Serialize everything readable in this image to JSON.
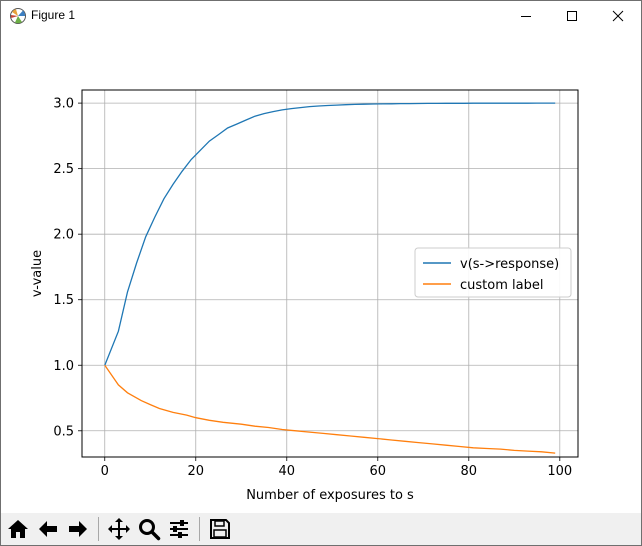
{
  "window": {
    "title": "Figure 1"
  },
  "toolbar": {
    "buttons": [
      {
        "name": "home-icon",
        "tooltip": "Reset original view"
      },
      {
        "name": "back-arrow-icon",
        "tooltip": "Back to previous view"
      },
      {
        "name": "forward-arrow-icon",
        "tooltip": "Forward to next view"
      },
      {
        "name": "pan-icon",
        "tooltip": "Pan axes"
      },
      {
        "name": "zoom-icon",
        "tooltip": "Zoom to rectangle"
      },
      {
        "name": "configure-subplots-icon",
        "tooltip": "Configure subplots"
      },
      {
        "name": "save-icon",
        "tooltip": "Save the figure"
      }
    ]
  },
  "colors": {
    "series1": "#1f77b4",
    "series2": "#ff7f0e",
    "grid": "#b0b0b0",
    "axes": "#000000"
  },
  "chart_data": {
    "type": "line",
    "title": "",
    "xlabel": "Number of exposures to s",
    "ylabel": "v-value",
    "xlim": [
      -5,
      104
    ],
    "ylim": [
      0.3,
      3.1
    ],
    "xticks": [
      0,
      20,
      40,
      60,
      80,
      100
    ],
    "yticks": [
      0.5,
      1.0,
      1.5,
      2.0,
      2.5,
      3.0
    ],
    "xtick_labels": [
      "0",
      "20",
      "40",
      "60",
      "80",
      "100"
    ],
    "ytick_labels": [
      "0.5",
      "1.0",
      "1.5",
      "2.0",
      "2.5",
      "3.0"
    ],
    "grid": true,
    "legend_position": "center-right",
    "series": [
      {
        "name": "v(s->response)",
        "color": "#1f77b4",
        "x": [
          0,
          3,
          5,
          7,
          9,
          11,
          13,
          15,
          17,
          19,
          21,
          23,
          25,
          27,
          29,
          31,
          33,
          35,
          37,
          39,
          41,
          43,
          45,
          47,
          49,
          51,
          53,
          55,
          57,
          59,
          61,
          63,
          65,
          67,
          69,
          71,
          73,
          75,
          77,
          79,
          81,
          83,
          85,
          87,
          89,
          91,
          93,
          95,
          97,
          99
        ],
        "y": [
          1.0,
          1.26,
          1.56,
          1.78,
          1.98,
          2.13,
          2.27,
          2.38,
          2.48,
          2.57,
          2.64,
          2.71,
          2.76,
          2.81,
          2.84,
          2.87,
          2.9,
          2.92,
          2.935,
          2.948,
          2.958,
          2.966,
          2.973,
          2.978,
          2.982,
          2.985,
          2.988,
          2.99,
          2.992,
          2.993,
          2.994,
          2.995,
          2.996,
          2.9965,
          2.997,
          2.9975,
          2.998,
          2.9983,
          2.9986,
          2.9988,
          2.999,
          2.9991,
          2.9992,
          2.9993,
          2.9994,
          2.9995,
          2.9996,
          2.9997,
          2.9998,
          3.0
        ]
      },
      {
        "name": "custom label",
        "color": "#ff7f0e",
        "x": [
          0,
          3,
          5,
          8,
          10,
          12,
          15,
          18,
          20,
          23,
          26,
          30,
          33,
          36,
          39,
          42,
          45,
          48,
          51,
          54,
          57,
          60,
          63,
          66,
          69,
          72,
          75,
          78,
          81,
          84,
          87,
          90,
          93,
          96,
          99
        ],
        "y": [
          1.0,
          0.85,
          0.79,
          0.73,
          0.7,
          0.67,
          0.64,
          0.62,
          0.6,
          0.58,
          0.565,
          0.55,
          0.535,
          0.525,
          0.51,
          0.5,
          0.49,
          0.48,
          0.47,
          0.46,
          0.45,
          0.44,
          0.43,
          0.42,
          0.41,
          0.4,
          0.39,
          0.38,
          0.37,
          0.365,
          0.36,
          0.35,
          0.345,
          0.34,
          0.33
        ]
      }
    ]
  }
}
